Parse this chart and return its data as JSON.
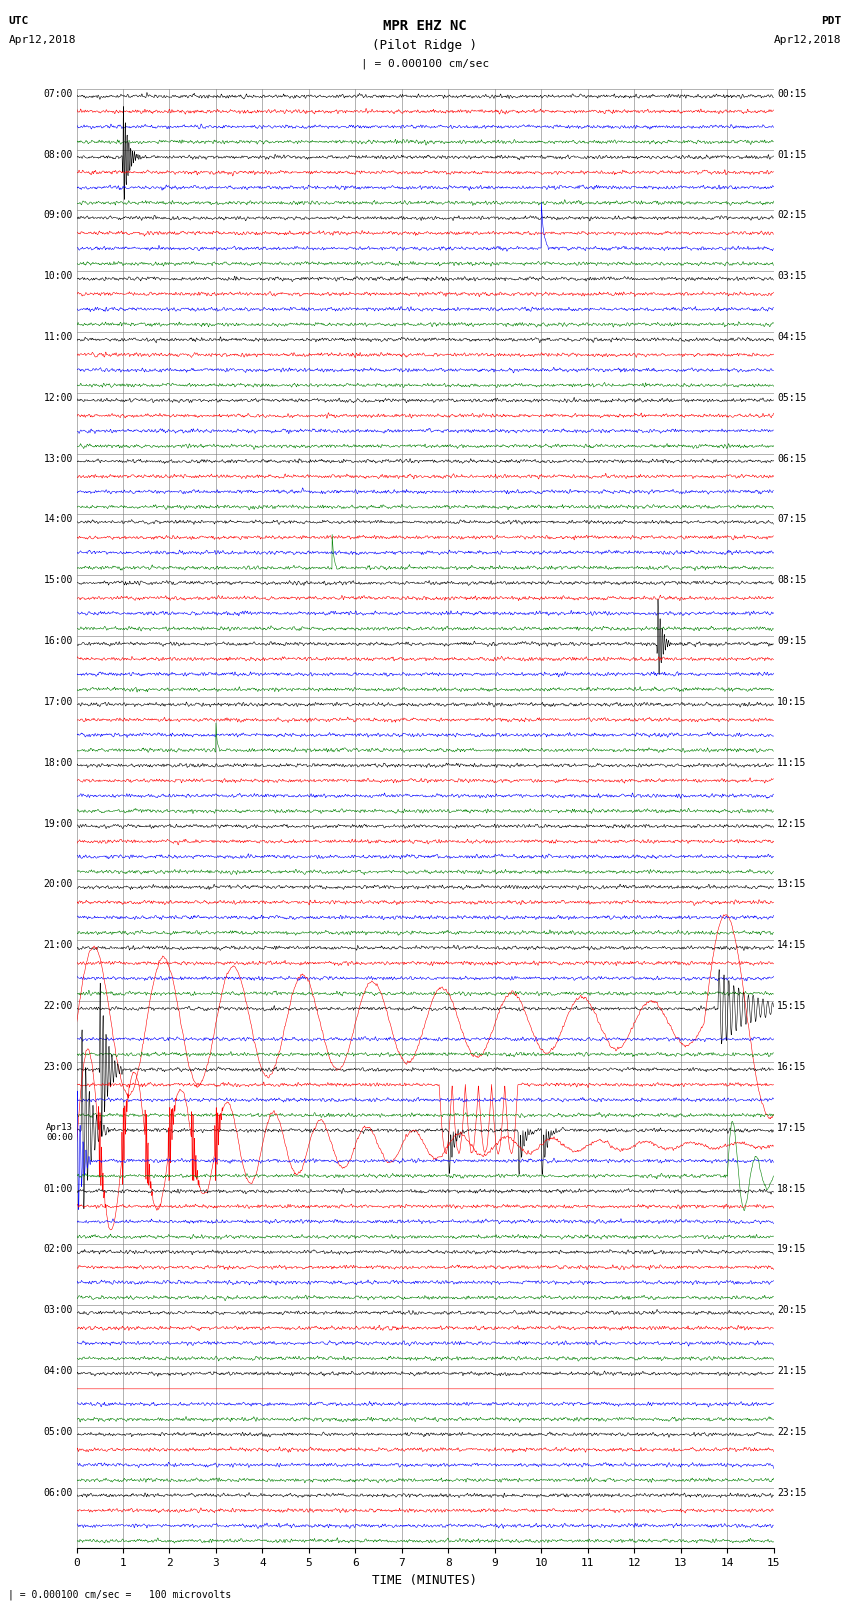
{
  "title_line1": "MPR EHZ NC",
  "title_line2": "(Pilot Ridge )",
  "scale_label": "| = 0.000100 cm/sec",
  "left_header_line1": "UTC",
  "left_header_line2": "Apr12,2018",
  "right_header_line1": "PDT",
  "right_header_line2": "Apr12,2018",
  "footer": "| = 0.000100 cm/sec =   100 microvolts",
  "xlabel": "TIME (MINUTES)",
  "xlim": [
    0,
    15
  ],
  "xticks": [
    0,
    1,
    2,
    3,
    4,
    5,
    6,
    7,
    8,
    9,
    10,
    11,
    12,
    13,
    14,
    15
  ],
  "utc_labels": [
    "07:00",
    "08:00",
    "09:00",
    "10:00",
    "11:00",
    "12:00",
    "13:00",
    "14:00",
    "15:00",
    "16:00",
    "17:00",
    "18:00",
    "19:00",
    "20:00",
    "21:00",
    "22:00",
    "23:00",
    "Apr13",
    "01:00",
    "02:00",
    "03:00",
    "04:00",
    "05:00",
    "06:00"
  ],
  "utc_label_extra": {
    "17": "00:00"
  },
  "pdt_labels": [
    "00:15",
    "01:15",
    "02:15",
    "03:15",
    "04:15",
    "05:15",
    "06:15",
    "07:15",
    "08:15",
    "09:15",
    "10:15",
    "11:15",
    "12:15",
    "13:15",
    "14:15",
    "15:15",
    "16:15",
    "17:15",
    "18:15",
    "19:15",
    "20:15",
    "21:15",
    "22:15",
    "23:15"
  ],
  "n_rows": 24,
  "traces_per_row": 4,
  "row_colors": [
    "black",
    "red",
    "blue",
    "green"
  ],
  "bg_color": "white",
  "noise_amplitude": 0.008,
  "grid_color": "#777777",
  "grid_linewidth": 0.4,
  "trace_linewidth": 0.4,
  "figsize": [
    8.5,
    16.13
  ],
  "dpi": 100
}
